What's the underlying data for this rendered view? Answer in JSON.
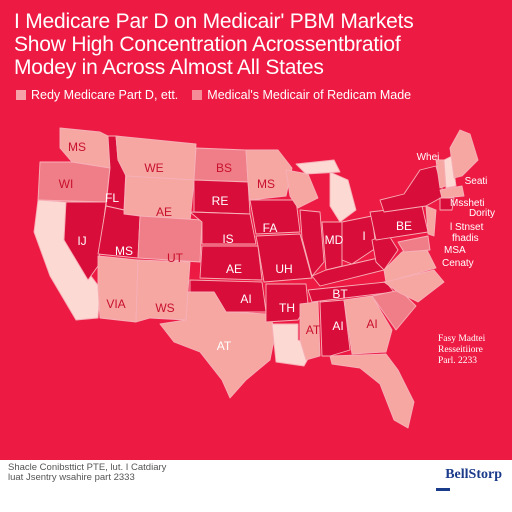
{
  "title": {
    "line1": "I Medicare Par D on Medicair' PBM Markets",
    "line2": "Show High Concentration Acrossentbratiof",
    "line3": "Modey in Across Almost All States"
  },
  "legend": [
    {
      "label": "Redy Medicare Part D, ett.",
      "color": "#f5a3a8"
    },
    {
      "label": "Medical's Medicair of Redicam Made",
      "color": "#f58b97"
    }
  ],
  "colors": {
    "background": "#ed1b44",
    "dark": "#d90d3a",
    "medium": "#f07e88",
    "light": "#f6a7a2",
    "pale": "#fcd9d2"
  },
  "state_labels": [
    "MS",
    "WE",
    "BS",
    "WI",
    "MS",
    "FL",
    "RE",
    "AE",
    "IJ",
    "MS",
    "IS",
    "FA",
    "UT",
    "AE",
    "UH",
    "VIA",
    "WS",
    "AI",
    "AT",
    "TH",
    "AT",
    "AI",
    "AI",
    "BT",
    "MD",
    "BE",
    "I",
    "Whei",
    "Seati",
    "Dority"
  ],
  "side_labels": [
    "Mssheti",
    "l Stnset",
    "fhadis",
    "MSA",
    "Cenaty"
  ],
  "note": {
    "line1": "Fasy Madtei",
    "line2": "Resseitiiore",
    "line3": "Parl. 2233"
  },
  "footer": {
    "source_line1": "Shacle Conibsttict PTE, lut. I Catdiary",
    "source_line2": "luat Jsentry wsahire part 2333",
    "brand": "BellStorp"
  }
}
